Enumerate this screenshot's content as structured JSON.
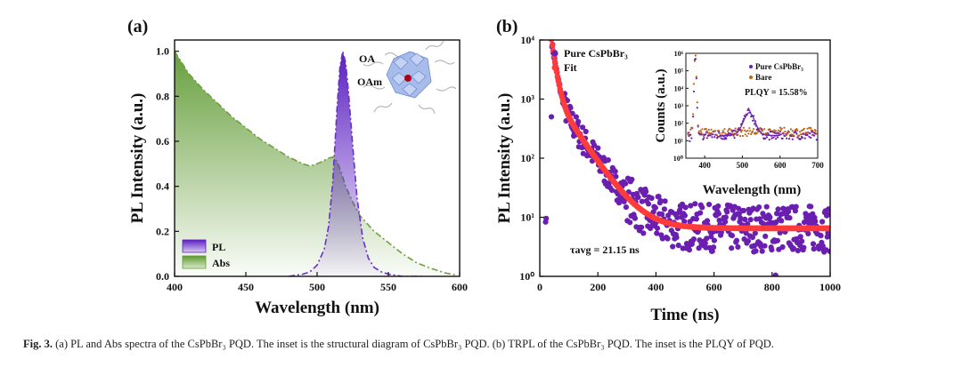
{
  "figure": {
    "caption_label": "Fig. 3.",
    "caption_text": "(a) PL and Abs spectra of the CsPbBr₃ PQD. The inset is the structural diagram of CsPbBr₃ PQD. (b) TRPL of the CsPbBr₃ PQD. The inset is the PLQY of PQD."
  },
  "colors": {
    "pl": "#6a2fc9",
    "abs": "#6f9f3c",
    "fit": "#ff3b3b",
    "scatter": "#6a1fb0",
    "bare": "#c0641a"
  },
  "chart_data": [
    {
      "panel": "(a)",
      "type": "area",
      "xlabel": "Wavelength (nm)",
      "ylabel": "PL Intensity (a.u.)",
      "xlim": [
        400,
        600
      ],
      "ylim": [
        0,
        1.05
      ],
      "xticks": [
        "400",
        "450",
        "500",
        "550",
        "600"
      ],
      "yticks": [
        "0.0",
        "0.2",
        "0.4",
        "0.6",
        "0.8",
        "1.0"
      ],
      "legend": [
        "PL",
        "Abs"
      ],
      "inset_labels": [
        "OA",
        "OAm"
      ],
      "series": [
        {
          "name": "PL",
          "x": [
            480,
            490,
            495,
            500,
            505,
            508,
            511,
            514,
            516,
            518,
            520,
            522,
            525,
            528,
            532,
            536,
            540,
            545,
            550,
            560,
            575
          ],
          "y": [
            0.0,
            0.01,
            0.02,
            0.05,
            0.12,
            0.22,
            0.42,
            0.75,
            0.93,
            1.0,
            0.95,
            0.82,
            0.58,
            0.35,
            0.17,
            0.08,
            0.04,
            0.02,
            0.01,
            0.0,
            0.0
          ]
        },
        {
          "name": "Abs",
          "x": [
            400,
            410,
            420,
            430,
            440,
            450,
            460,
            470,
            480,
            490,
            495,
            500,
            505,
            508,
            511,
            514,
            517,
            520,
            525,
            530,
            540,
            550,
            560,
            570,
            580,
            590,
            598
          ],
          "y": [
            1.0,
            0.9,
            0.83,
            0.77,
            0.71,
            0.66,
            0.61,
            0.57,
            0.53,
            0.5,
            0.49,
            0.5,
            0.515,
            0.525,
            0.53,
            0.51,
            0.46,
            0.4,
            0.33,
            0.27,
            0.2,
            0.15,
            0.1,
            0.06,
            0.035,
            0.015,
            0.005
          ]
        }
      ]
    },
    {
      "panel": "(b)",
      "type": "scatter",
      "xlabel": "Time (ns)",
      "ylabel": "PL Intensity (a.u.)",
      "xlim": [
        0,
        1000
      ],
      "ylim_log10": [
        0,
        4
      ],
      "xticks": [
        "0",
        "200",
        "400",
        "600",
        "800",
        "1000"
      ],
      "yticks": [
        "10⁰",
        "10¹",
        "10²",
        "10³",
        "10⁴"
      ],
      "legend": [
        "Pure CsPbBr₃",
        "Fit"
      ],
      "annotation": "τavg = 21.15 ns",
      "fit": {
        "baseline": 6.5,
        "components": [
          {
            "amplitude": 9000,
            "tau_ns": 12
          },
          {
            "amplitude": 1200,
            "tau_ns": 60
          }
        ],
        "start_ns": 40
      },
      "inset": {
        "type": "line",
        "xlabel": "Wavelength (nm)",
        "ylabel": "Counts (a.u.)",
        "xlim": [
          350,
          700
        ],
        "xticks": [
          "400",
          "500",
          "600",
          "700"
        ],
        "yticks": [
          "10⁰",
          "10¹",
          "10²",
          "10³",
          "10⁴",
          "10⁵",
          "10⁶"
        ],
        "legend": [
          "Pure CsPbBr₃",
          "Bare"
        ],
        "annotation": "PLQY = 15.58%",
        "pure_peak_nm": 518,
        "pure_peak_counts_log10": 2.6,
        "excitation_peak_nm": 375
      }
    }
  ]
}
